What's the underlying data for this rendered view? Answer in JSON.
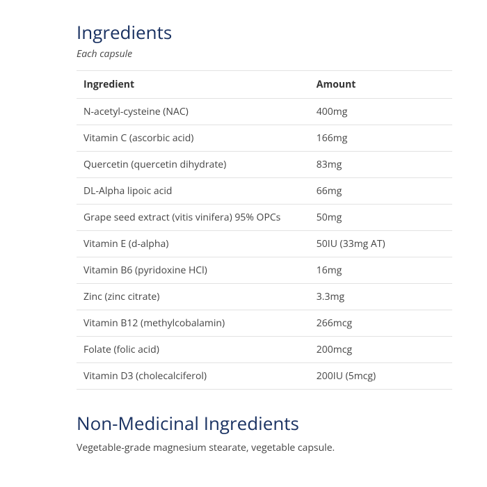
{
  "ingredients": {
    "heading": "Ingredients",
    "subtitle": "Each capsule",
    "columns": [
      "Ingredient",
      "Amount"
    ],
    "rows": [
      [
        "N-acetyl-cysteine (NAC)",
        "400mg"
      ],
      [
        "Vitamin C (ascorbic acid)",
        "166mg"
      ],
      [
        "Quercetin (quercetin dihydrate)",
        "83mg"
      ],
      [
        "DL-Alpha lipoic acid",
        "66mg"
      ],
      [
        "Grape seed extract (vitis vinifera) 95% OPCs",
        "50mg"
      ],
      [
        "Vitamin E (d-alpha)",
        "50IU (33mg AT)"
      ],
      [
        "Vitamin B6 (pyridoxine HCl)",
        "16mg"
      ],
      [
        "Zinc (zinc citrate)",
        "3.3mg"
      ],
      [
        "Vitamin B12 (methylcobalamin)",
        "266mcg"
      ],
      [
        "Folate (folic acid)",
        "200mcg"
      ],
      [
        "Vitamin D3 (cholecalciferol)",
        "200IU (5mcg)"
      ]
    ]
  },
  "nonMedicinal": {
    "heading": "Non-Medicinal Ingredients",
    "text": "Vegetable-grade magnesium stearate, vegetable capsule."
  },
  "styles": {
    "heading_color": "#1a3262",
    "text_color": "#444444",
    "border_color": "#e2e2e2",
    "background_color": "#ffffff",
    "heading_fontsize": 26,
    "body_fontsize": 14
  }
}
